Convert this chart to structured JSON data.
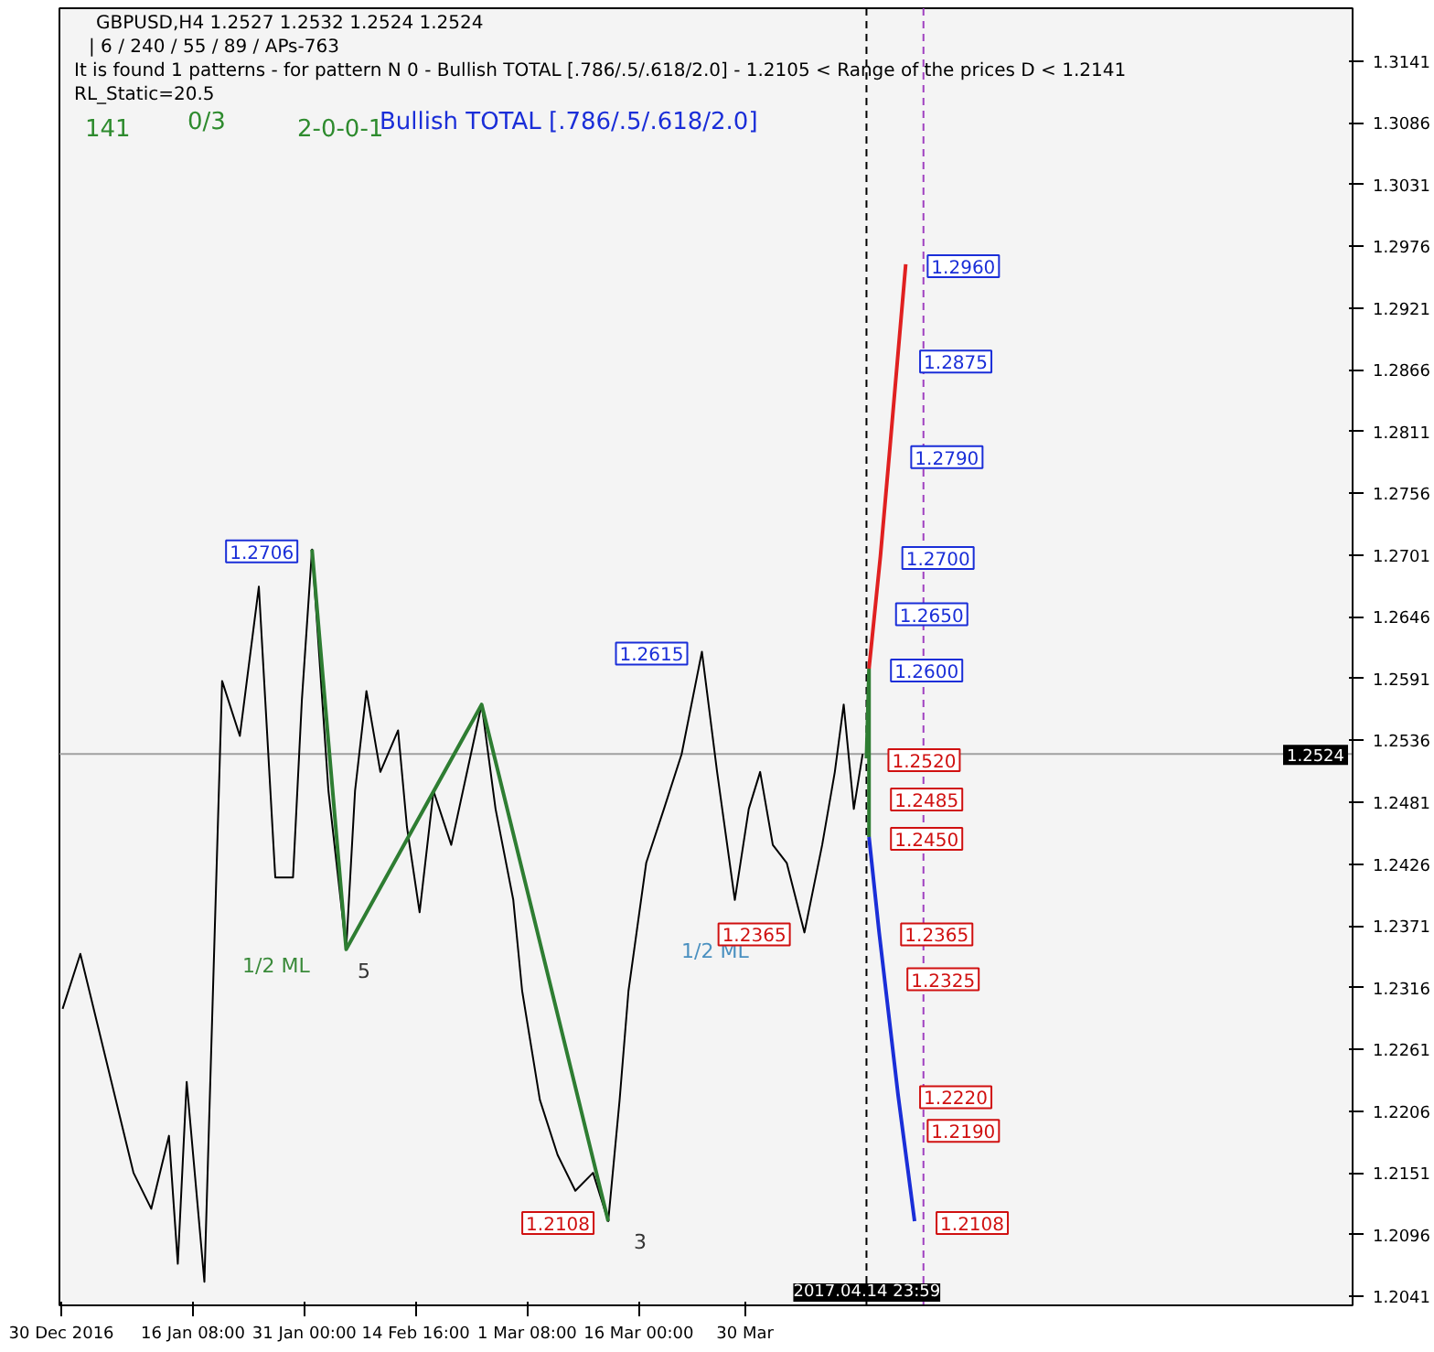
{
  "chart_data": {
    "type": "line",
    "annotations": [
      "GBPUSD,H4  1.2527 1.2532 1.2524 1.2524",
      "| 6 / 240 / 55 / 89 / APs-763",
      "It is found 1 patterns  -  for pattern N 0 - Bullish TOTAL [.786/.5/.618/2.0] - 1.2105 < Range of the prices D < 1.2141",
      "RL_Static=20.5",
      "141",
      "0/3",
      "2-0-0-1",
      "Bullish TOTAL [.786/.5/.618/2.0]",
      "1/2 ML",
      "1/2 ML",
      "5",
      "3",
      {
        "text": "1.2706",
        "x": "2017-02-01T00:00",
        "y": 1.2706
      },
      {
        "text": "1.2615",
        "x": "2017-03-24T08:00",
        "y": 1.2615
      },
      {
        "text": "1.2365",
        "x": "2017-04-06T20:00",
        "y": 1.2365
      },
      {
        "text": "1.2108",
        "x": "2017-03-12T00:00",
        "y": 1.2108
      },
      {
        "text": "1.2960",
        "x": "2017-04-20T04:00",
        "y": 1.296
      },
      {
        "text": "1.2875",
        "x": "2017-04-19T04:00",
        "y": 1.2875
      },
      {
        "text": "1.2790",
        "x": "2017-04-18T00:00",
        "y": 1.279
      },
      {
        "text": "1.2700",
        "x": "2017-04-16T20:00",
        "y": 1.27
      },
      {
        "text": "1.2650",
        "x": "2017-04-16T00:00",
        "y": 1.265
      },
      {
        "text": "1.2600",
        "x": "2017-04-15T08:00",
        "y": 1.26
      },
      {
        "text": "1.2520",
        "x": "2017-04-14T23:59",
        "y": 1.252
      },
      {
        "text": "1.2485",
        "x": "2017-04-15T08:00",
        "y": 1.2485
      },
      {
        "text": "1.2450",
        "x": "2017-04-15T08:00",
        "y": 1.245
      },
      {
        "text": "1.2365",
        "x": "2017-04-16T16:00",
        "y": 1.2365
      },
      {
        "text": "1.2325",
        "x": "2017-04-17T12:00",
        "y": 1.2325
      },
      {
        "text": "1.2220",
        "x": "2017-04-19T04:00",
        "y": 1.222
      },
      {
        "text": "1.2190",
        "x": "2017-04-20T04:00",
        "y": 1.219
      },
      {
        "text": "1.2108",
        "x": "2017-04-21T08:00",
        "y": 1.2108
      }
    ],
    "series": [
      {
        "color": "#000000",
        "x": [
          "2016-12-30T04:00",
          "2017-01-01T12:00",
          "2017-01-03T20:00",
          "2017-01-06T04:00",
          "2017-01-08T12:00",
          "2017-01-10T20:00",
          "2017-01-13T04:00",
          "2017-01-14T08:00",
          "2017-01-15T12:00",
          "2017-01-17T20:00",
          "2017-01-20T04:00",
          "2017-01-22T12:00",
          "2017-01-25T00:00",
          "2017-01-27T04:00",
          "2017-01-29T12:00",
          "2017-01-30T16:00",
          "2017-02-01T00:00",
          "2017-02-03T04:00",
          "2017-02-05T12:00",
          "2017-02-06T16:00",
          "2017-02-08T04:00",
          "2017-02-10T00:00",
          "2017-02-12T08:00",
          "2017-02-13T12:00",
          "2017-02-15T04:00",
          "2017-02-17T00:00",
          "2017-02-19T08:00",
          "2017-02-23T08:00",
          "2017-02-25T04:00",
          "2017-02-27T12:00",
          "2017-02-28T16:00",
          "2017-03-03T00:00",
          "2017-03-05T08:00",
          "2017-03-07T16:00",
          "2017-03-10T00:00",
          "2017-03-12T00:00",
          "2017-03-13T12:00",
          "2017-03-14T16:00",
          "2017-03-17T00:00",
          "2017-03-19T08:00",
          "2017-03-21T16:00",
          "2017-03-24T08:00",
          "2017-03-26T08:00",
          "2017-03-28T16:00",
          "2017-03-30T12:00",
          "2017-04-01T00:00",
          "2017-04-02T16:00",
          "2017-04-04T12:00",
          "2017-04-06T20:00",
          "2017-04-09T04:00",
          "2017-04-10T20:00",
          "2017-04-12T00:00",
          "2017-04-13T08:00",
          "2017-04-14T12:00"
        ],
        "values": [
          1.2297,
          1.2346,
          1.2281,
          1.2216,
          1.2151,
          1.2119,
          1.2184,
          1.207,
          1.2232,
          1.2054,
          1.2589,
          1.254,
          1.2673,
          1.2414,
          1.2414,
          1.2572,
          1.2706,
          1.2491,
          1.235,
          1.2491,
          1.258,
          1.2508,
          1.2545,
          1.2459,
          1.2383,
          1.2491,
          1.2443,
          1.2568,
          1.2475,
          1.2394,
          1.2313,
          1.2216,
          1.2167,
          1.2135,
          1.2151,
          1.2108,
          1.2216,
          1.2313,
          1.2427,
          1.2475,
          1.2524,
          1.2615,
          1.2508,
          1.2394,
          1.2475,
          1.2508,
          1.2443,
          1.2427,
          1.2365,
          1.2443,
          1.2508,
          1.2568,
          1.2475,
          1.2524
        ]
      },
      {
        "color": "#2e7d32",
        "x": [
          "2017-02-01T00:00",
          "2017-02-05T12:00",
          "2017-02-23T08:00",
          "2017-03-12T00:00"
        ],
        "values": [
          1.2706,
          1.235,
          1.2568,
          1.2108
        ]
      },
      {
        "color": "#2e7d32",
        "x": [
          "2017-04-14T23:59",
          "2017-04-15T08:00",
          "2017-04-15T08:00"
        ],
        "values": [
          1.252,
          1.26,
          1.245
        ]
      },
      {
        "color": "#e02020",
        "x": [
          "2017-04-15T08:00",
          "2017-04-16T20:00",
          "2017-04-18T00:00",
          "2017-04-20T04:00"
        ],
        "values": [
          1.26,
          1.27,
          1.279,
          1.296
        ]
      },
      {
        "color": "#1a2ed8",
        "x": [
          "2017-04-15T08:00",
          "2017-04-16T16:00",
          "2017-04-19T04:00",
          "2017-04-21T08:00"
        ],
        "values": [
          1.245,
          1.2365,
          1.222,
          1.2108
        ]
      }
    ],
    "xlim": [
      "2016-12-29T18:00",
      "2017-06-18"
    ],
    "ylim": [
      1.2033,
      1.3188
    ],
    "xticks": [
      {
        "value": "2016-12-30",
        "label": "30 Dec 2016"
      },
      {
        "value": "2017-01-16T08:00",
        "label": "16 Jan 08:00"
      },
      {
        "value": "2017-01-31T00:00",
        "label": "31 Jan 00:00"
      },
      {
        "value": "2017-02-14T16:00",
        "label": "14 Feb 16:00"
      },
      {
        "value": "2017-03-01T08:00",
        "label": "1 Mar 08:00"
      },
      {
        "value": "2017-03-16T00:00",
        "label": "16 Mar 00:00"
      },
      {
        "value": "2017-03-30",
        "label": "30 Mar"
      }
    ],
    "yticks": [
      1.3141,
      1.3086,
      1.3031,
      1.2976,
      1.2921,
      1.2866,
      1.2811,
      1.2756,
      1.2701,
      1.2646,
      1.2591,
      1.2536,
      1.2481,
      1.2426,
      1.2371,
      1.2316,
      1.2261,
      1.2206,
      1.2151,
      1.2096,
      1.2041
    ],
    "ref_lines": [
      {
        "axis": "y",
        "value": 1.2524,
        "label": "1.2524",
        "color": "#a0a0a0"
      },
      {
        "axis": "x",
        "value": "2017-04-14T23:59",
        "label": "2017.04.14 23:59",
        "color": "#000000",
        "line_style": "dashed"
      },
      {
        "axis": "x",
        "value": "2017-04-22T12:00",
        "color": "#a040c0",
        "line_style": "dashed"
      }
    ],
    "grid": false
  }
}
